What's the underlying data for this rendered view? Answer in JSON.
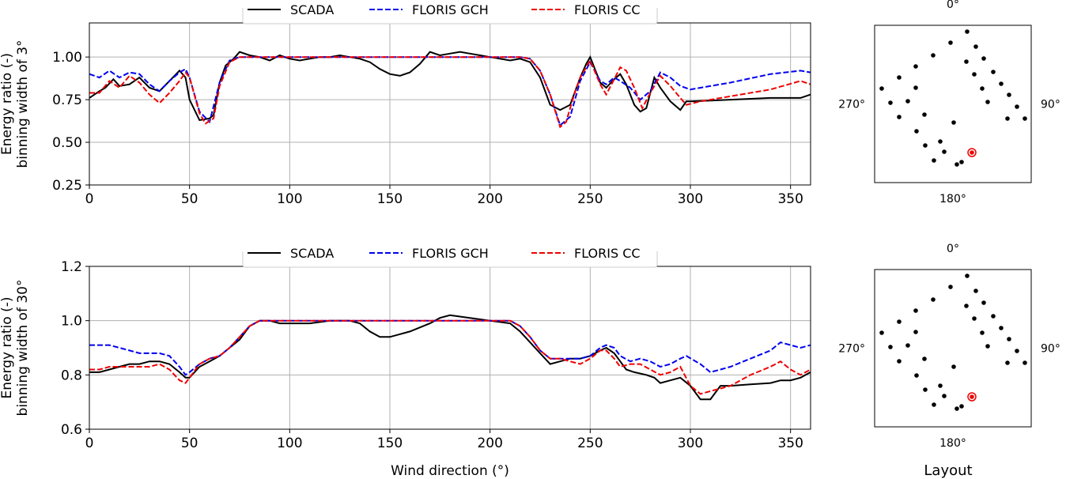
{
  "chart_data": [
    {
      "type": "line",
      "ylabel_lines": [
        "Energy ratio (-)",
        "binning width of 3°"
      ],
      "xlabel": "",
      "xlim": [
        0,
        360
      ],
      "ylim": [
        0.25,
        1.2
      ],
      "xticks": [
        0,
        50,
        100,
        150,
        200,
        250,
        300,
        350
      ],
      "yticks": [
        0.25,
        0.5,
        0.75,
        1.0
      ],
      "ytick_labels": [
        "0.25",
        "0.50",
        "0.75",
        "1.00"
      ],
      "grid": true,
      "legend_position": "top-center",
      "series": [
        {
          "name": "SCADA",
          "color": "#000000",
          "dash": "solid",
          "x": [
            0,
            5,
            8,
            12,
            15,
            20,
            25,
            30,
            35,
            40,
            45,
            48,
            50,
            55,
            60,
            62,
            65,
            68,
            72,
            75,
            80,
            85,
            90,
            95,
            100,
            105,
            110,
            115,
            120,
            125,
            130,
            135,
            140,
            145,
            150,
            155,
            160,
            165,
            170,
            175,
            180,
            185,
            190,
            195,
            200,
            205,
            210,
            215,
            220,
            225,
            230,
            235,
            240,
            245,
            248,
            250,
            255,
            258,
            262,
            265,
            268,
            272,
            275,
            278,
            282,
            285,
            290,
            295,
            298,
            300,
            310,
            320,
            330,
            340,
            355,
            360
          ],
          "y": [
            0.76,
            0.8,
            0.82,
            0.87,
            0.83,
            0.84,
            0.88,
            0.82,
            0.8,
            0.86,
            0.92,
            0.88,
            0.75,
            0.63,
            0.64,
            0.66,
            0.85,
            0.95,
            0.99,
            1.03,
            1.01,
            1.0,
            0.98,
            1.01,
            0.99,
            0.98,
            0.99,
            1.0,
            1.0,
            1.01,
            1.0,
            0.99,
            0.97,
            0.93,
            0.9,
            0.89,
            0.91,
            0.96,
            1.03,
            1.01,
            1.02,
            1.03,
            1.02,
            1.01,
            1.0,
            0.99,
            0.98,
            0.99,
            0.97,
            0.88,
            0.72,
            0.69,
            0.72,
            0.88,
            0.96,
            1.0,
            0.85,
            0.82,
            0.87,
            0.9,
            0.84,
            0.72,
            0.68,
            0.7,
            0.88,
            0.82,
            0.74,
            0.69,
            0.74,
            0.74,
            0.745,
            0.75,
            0.755,
            0.76,
            0.76,
            0.78
          ]
        },
        {
          "name": "FLORIS GCH",
          "color": "#0000ee",
          "dash": "dashed",
          "x": [
            0,
            5,
            10,
            15,
            20,
            25,
            30,
            35,
            40,
            45,
            48,
            50,
            55,
            60,
            65,
            70,
            75,
            80,
            100,
            150,
            200,
            215,
            220,
            225,
            230,
            235,
            240,
            245,
            250,
            255,
            258,
            262,
            265,
            270,
            275,
            280,
            285,
            290,
            295,
            300,
            320,
            340,
            355,
            360
          ],
          "y": [
            0.9,
            0.88,
            0.92,
            0.88,
            0.91,
            0.9,
            0.84,
            0.8,
            0.86,
            0.91,
            0.93,
            0.88,
            0.68,
            0.62,
            0.85,
            0.98,
            1.0,
            1.0,
            1.0,
            1.0,
            1.0,
            1.0,
            0.99,
            0.92,
            0.78,
            0.6,
            0.65,
            0.86,
            0.97,
            0.86,
            0.84,
            0.88,
            0.86,
            0.82,
            0.75,
            0.8,
            0.91,
            0.88,
            0.83,
            0.81,
            0.85,
            0.9,
            0.92,
            0.91
          ]
        },
        {
          "name": "FLORIS CC",
          "color": "#ee0000",
          "dash": "dashed",
          "x": [
            0,
            5,
            10,
            15,
            20,
            25,
            30,
            35,
            40,
            45,
            48,
            50,
            55,
            58,
            62,
            65,
            70,
            75,
            80,
            100,
            150,
            200,
            215,
            220,
            225,
            230,
            235,
            238,
            242,
            245,
            250,
            255,
            258,
            262,
            265,
            268,
            272,
            276,
            280,
            285,
            290,
            295,
            298,
            305,
            320,
            340,
            355,
            360
          ],
          "y": [
            0.79,
            0.79,
            0.86,
            0.82,
            0.89,
            0.85,
            0.78,
            0.73,
            0.79,
            0.86,
            0.91,
            0.88,
            0.67,
            0.61,
            0.64,
            0.83,
            0.97,
            1.0,
            1.0,
            1.0,
            1.0,
            1.0,
            1.0,
            0.99,
            0.92,
            0.78,
            0.59,
            0.62,
            0.78,
            0.88,
            0.98,
            0.84,
            0.78,
            0.87,
            0.94,
            0.92,
            0.82,
            0.7,
            0.79,
            0.89,
            0.83,
            0.76,
            0.72,
            0.74,
            0.77,
            0.81,
            0.86,
            0.84
          ]
        }
      ]
    },
    {
      "type": "line",
      "ylabel_lines": [
        "Energy ratio (-)",
        "binning width of 30°"
      ],
      "xlabel": "Wind direction (°)",
      "xlim": [
        0,
        360
      ],
      "ylim": [
        0.6,
        1.2
      ],
      "xticks": [
        0,
        50,
        100,
        150,
        200,
        250,
        300,
        350
      ],
      "yticks": [
        0.6,
        0.8,
        1.0,
        1.2
      ],
      "ytick_labels": [
        "0.6",
        "0.8",
        "1.0",
        "1.2"
      ],
      "grid": true,
      "legend_position": "top-center",
      "series": [
        {
          "name": "SCADA",
          "color": "#000000",
          "dash": "solid",
          "x": [
            0,
            5,
            10,
            15,
            20,
            25,
            30,
            35,
            40,
            45,
            48,
            50,
            55,
            60,
            65,
            70,
            75,
            80,
            85,
            90,
            95,
            100,
            110,
            120,
            130,
            135,
            140,
            145,
            150,
            155,
            160,
            170,
            175,
            180,
            190,
            200,
            210,
            215,
            220,
            225,
            230,
            235,
            240,
            245,
            250,
            255,
            258,
            262,
            265,
            268,
            272,
            278,
            282,
            285,
            290,
            295,
            300,
            305,
            310,
            315,
            320,
            330,
            340,
            345,
            350,
            355,
            360
          ],
          "y": [
            0.81,
            0.81,
            0.82,
            0.83,
            0.84,
            0.84,
            0.85,
            0.85,
            0.84,
            0.81,
            0.79,
            0.79,
            0.83,
            0.85,
            0.87,
            0.9,
            0.93,
            0.98,
            1.0,
            1.0,
            0.99,
            0.99,
            0.99,
            1.0,
            1.0,
            0.99,
            0.96,
            0.94,
            0.94,
            0.95,
            0.96,
            0.99,
            1.01,
            1.02,
            1.01,
            1.0,
            0.99,
            0.96,
            0.92,
            0.88,
            0.84,
            0.85,
            0.86,
            0.86,
            0.87,
            0.89,
            0.9,
            0.88,
            0.85,
            0.82,
            0.81,
            0.8,
            0.79,
            0.77,
            0.78,
            0.79,
            0.76,
            0.71,
            0.71,
            0.76,
            0.76,
            0.765,
            0.77,
            0.78,
            0.78,
            0.79,
            0.81
          ]
        },
        {
          "name": "FLORIS GCH",
          "color": "#0000ee",
          "dash": "dashed",
          "x": [
            0,
            5,
            10,
            15,
            20,
            25,
            30,
            35,
            40,
            45,
            48,
            50,
            55,
            60,
            65,
            70,
            75,
            80,
            85,
            100,
            150,
            200,
            210,
            215,
            220,
            225,
            230,
            235,
            240,
            245,
            250,
            255,
            258,
            262,
            265,
            270,
            275,
            280,
            285,
            290,
            295,
            298,
            305,
            310,
            315,
            320,
            330,
            340,
            345,
            350,
            355,
            360
          ],
          "y": [
            0.91,
            0.91,
            0.91,
            0.9,
            0.89,
            0.88,
            0.88,
            0.88,
            0.87,
            0.83,
            0.8,
            0.81,
            0.84,
            0.86,
            0.87,
            0.9,
            0.94,
            0.98,
            1.0,
            1.0,
            1.0,
            1.0,
            1.0,
            0.98,
            0.94,
            0.89,
            0.86,
            0.86,
            0.86,
            0.86,
            0.87,
            0.9,
            0.91,
            0.9,
            0.87,
            0.85,
            0.86,
            0.85,
            0.83,
            0.84,
            0.86,
            0.87,
            0.84,
            0.81,
            0.82,
            0.83,
            0.86,
            0.89,
            0.92,
            0.91,
            0.9,
            0.91
          ]
        },
        {
          "name": "FLORIS CC",
          "color": "#ee0000",
          "dash": "dashed",
          "x": [
            0,
            5,
            10,
            15,
            20,
            25,
            30,
            35,
            40,
            45,
            48,
            50,
            55,
            60,
            65,
            70,
            75,
            80,
            85,
            100,
            150,
            200,
            210,
            215,
            220,
            225,
            230,
            235,
            240,
            245,
            250,
            255,
            258,
            262,
            265,
            270,
            275,
            280,
            285,
            290,
            295,
            300,
            305,
            310,
            315,
            320,
            330,
            340,
            345,
            350,
            355,
            360
          ],
          "y": [
            0.82,
            0.82,
            0.83,
            0.83,
            0.83,
            0.83,
            0.83,
            0.84,
            0.82,
            0.78,
            0.77,
            0.79,
            0.84,
            0.86,
            0.87,
            0.9,
            0.94,
            0.98,
            1.0,
            1.0,
            1.0,
            1.0,
            1.0,
            0.98,
            0.94,
            0.89,
            0.86,
            0.86,
            0.85,
            0.84,
            0.86,
            0.89,
            0.89,
            0.86,
            0.83,
            0.84,
            0.84,
            0.82,
            0.8,
            0.81,
            0.83,
            0.76,
            0.73,
            0.74,
            0.75,
            0.76,
            0.8,
            0.83,
            0.85,
            0.82,
            0.8,
            0.82
          ]
        }
      ]
    }
  ],
  "layout_panels": [
    {
      "north": "0°",
      "east": "90°",
      "south": "180°",
      "west": "270°"
    },
    {
      "north": "0°",
      "east": "90°",
      "south": "180°",
      "west": "270°",
      "title": "Layout"
    }
  ],
  "colors": {
    "grid": "#b0b0b0",
    "marker": "#ee0000"
  }
}
